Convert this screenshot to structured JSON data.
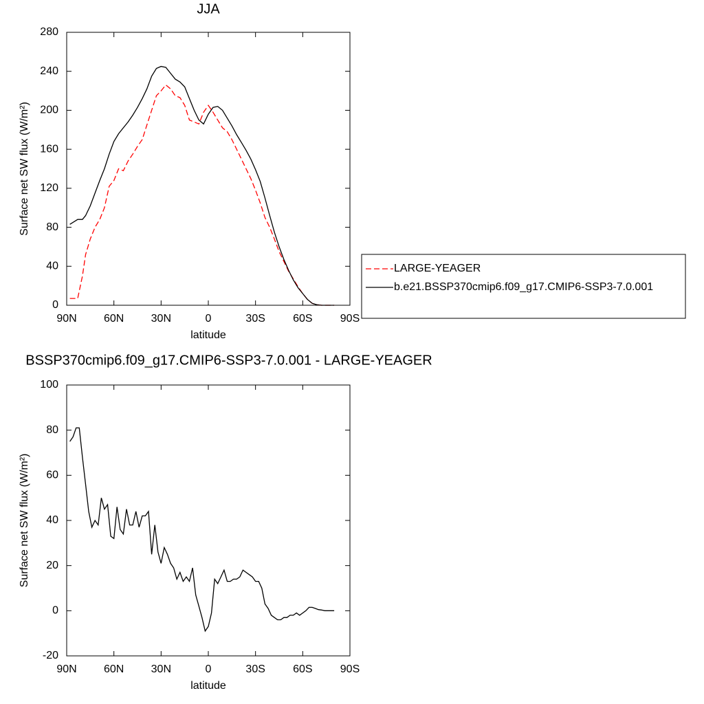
{
  "chart_data": [
    {
      "type": "line",
      "title": "JJA",
      "x_label": "latitude",
      "y_label": "Surface net SW flux (W/m²)",
      "xlim": [
        90,
        -90
      ],
      "xticks": [
        {
          "value": 90,
          "label": "90N"
        },
        {
          "value": 60,
          "label": "60N"
        },
        {
          "value": 30,
          "label": "30N"
        },
        0,
        {
          "value": -30,
          "label": "30S"
        },
        {
          "value": -60,
          "label": "60S"
        },
        {
          "value": -90,
          "label": "90S"
        }
      ],
      "ylim": [
        0,
        280
      ],
      "yticks": [
        0,
        40,
        80,
        120,
        160,
        200,
        240,
        280
      ],
      "legend": "right",
      "x": [
        88,
        85,
        83,
        80,
        78,
        75,
        72,
        69,
        66,
        63,
        60,
        57,
        54,
        51,
        48,
        45,
        42,
        39,
        36,
        33,
        30,
        27,
        24,
        21,
        18,
        15,
        12,
        9,
        6,
        3,
        0,
        -3,
        -6,
        -9,
        -12,
        -15,
        -18,
        -21,
        -24,
        -27,
        -30,
        -33,
        -36,
        -39,
        -42,
        -45,
        -48,
        -51,
        -54,
        -57,
        -60,
        -63,
        -66,
        -69,
        -72,
        -75,
        -78,
        -80
      ],
      "series": [
        {
          "name": "LARGE-YEAGER",
          "color": "#ff0000",
          "style": "dashed",
          "values": [
            7,
            7,
            7,
            30,
            52,
            68,
            80,
            88,
            100,
            122,
            128,
            140,
            138,
            148,
            155,
            163,
            170,
            185,
            200,
            215,
            220,
            226,
            222,
            215,
            213,
            205,
            190,
            188,
            186,
            198,
            205,
            198,
            190,
            182,
            178,
            170,
            160,
            150,
            140,
            130,
            118,
            105,
            90,
            80,
            68,
            55,
            45,
            35,
            27,
            19,
            12,
            6,
            2,
            0.5,
            0,
            0,
            0,
            0
          ]
        },
        {
          "name": "b.e21.BSSP370cmip6.f09_g17.CMIP6-SSP3-7.0.001",
          "color": "#000000",
          "style": "solid",
          "values": [
            83,
            86,
            88,
            88,
            92,
            102,
            115,
            128,
            140,
            155,
            168,
            176,
            182,
            188,
            195,
            203,
            212,
            222,
            235,
            243,
            245,
            244,
            238,
            232,
            229,
            224,
            212,
            200,
            190,
            186,
            196,
            203,
            204,
            200,
            192,
            184,
            175,
            167,
            159,
            150,
            139,
            127,
            110,
            92,
            75,
            60,
            47,
            36,
            26,
            18,
            12,
            6,
            2,
            0.5,
            0,
            0,
            0,
            0
          ]
        }
      ]
    },
    {
      "type": "line",
      "title": "BSSP370cmip6.f09_g17.CMIP6-SSP3-7.0.001 - LARGE-YEAGER",
      "x_label": "latitude",
      "y_label": "Surface net SW flux (W/m²)",
      "xlim": [
        90,
        -90
      ],
      "xticks": [
        {
          "value": 90,
          "label": "90N"
        },
        {
          "value": 60,
          "label": "60N"
        },
        {
          "value": 30,
          "label": "30N"
        },
        0,
        {
          "value": -30,
          "label": "30S"
        },
        {
          "value": -60,
          "label": "60S"
        },
        {
          "value": -90,
          "label": "90S"
        }
      ],
      "ylim": [
        -20,
        100
      ],
      "yticks": [
        -20,
        0,
        20,
        40,
        60,
        80,
        100
      ],
      "x": [
        88,
        86,
        84,
        82,
        80,
        78,
        76,
        74,
        72,
        70,
        68,
        66,
        64,
        62,
        60,
        58,
        56,
        54,
        52,
        50,
        48,
        46,
        44,
        42,
        40,
        38,
        36,
        34,
        32,
        30,
        28,
        26,
        24,
        22,
        20,
        18,
        16,
        14,
        12,
        10,
        8,
        6,
        4,
        2,
        0,
        -2,
        -4,
        -6,
        -8,
        -10,
        -12,
        -14,
        -16,
        -18,
        -20,
        -22,
        -24,
        -26,
        -28,
        -30,
        -32,
        -34,
        -36,
        -38,
        -40,
        -42,
        -44,
        -46,
        -48,
        -50,
        -52,
        -54,
        -56,
        -58,
        -60,
        -62,
        -64,
        -66,
        -68,
        -70,
        -72,
        -74,
        -76,
        -78,
        -80
      ],
      "color": "#000000",
      "values": [
        75,
        77,
        81,
        81,
        68,
        56,
        44,
        37,
        40,
        38,
        50,
        45,
        47,
        33,
        32,
        46,
        36,
        34,
        45,
        38,
        38,
        44,
        37,
        42,
        42,
        44,
        25,
        38,
        26,
        21,
        28,
        25,
        21,
        19,
        14,
        17,
        13,
        15,
        13,
        19,
        7,
        2,
        -3,
        -9,
        -7,
        -1,
        14,
        12,
        15,
        18,
        13,
        13,
        14,
        14,
        15,
        18,
        17,
        16,
        15,
        13,
        13,
        10,
        3,
        1,
        -2,
        -3,
        -4,
        -4,
        -3,
        -3,
        -2,
        -2,
        -1,
        -2,
        -1,
        0,
        1.5,
        1.5,
        1,
        0.5,
        0.3,
        0,
        0,
        0,
        0
      ]
    }
  ]
}
